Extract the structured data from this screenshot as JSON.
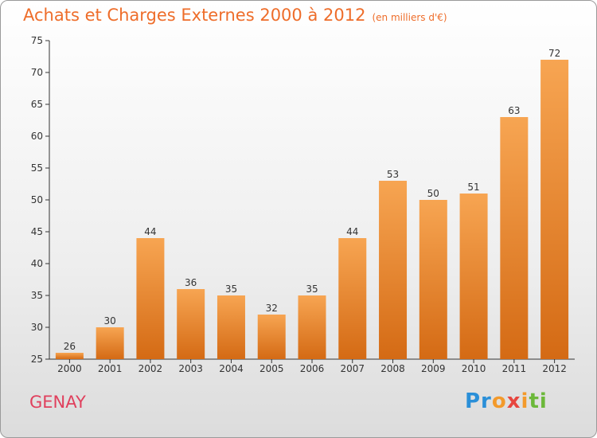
{
  "title": "Achats et Charges Externes 2000 à 2012",
  "subtitle": "(en milliers d'€)",
  "city": "GENAY",
  "logo": {
    "p1": "Pr",
    "p2": "o",
    "p3": "x",
    "p4": "i",
    "p5": "ti"
  },
  "colors": {
    "bar_top": "#f7a552",
    "bar_bottom": "#d46a14",
    "title": "#ee6d2a",
    "city": "#e0405d"
  },
  "chart_data": {
    "type": "bar",
    "categories": [
      "2000",
      "2001",
      "2002",
      "2003",
      "2004",
      "2005",
      "2006",
      "2007",
      "2008",
      "2009",
      "2010",
      "2011",
      "2012"
    ],
    "values": [
      26,
      30,
      44,
      36,
      35,
      32,
      35,
      44,
      53,
      50,
      51,
      63,
      72
    ],
    "title": "Achats et Charges Externes 2000 à 2012",
    "xlabel": "",
    "ylabel": "",
    "ylim": [
      25,
      75
    ],
    "yticks": [
      25,
      30,
      35,
      40,
      45,
      50,
      55,
      60,
      65,
      70,
      75
    ],
    "grid": false,
    "legend": "none"
  }
}
